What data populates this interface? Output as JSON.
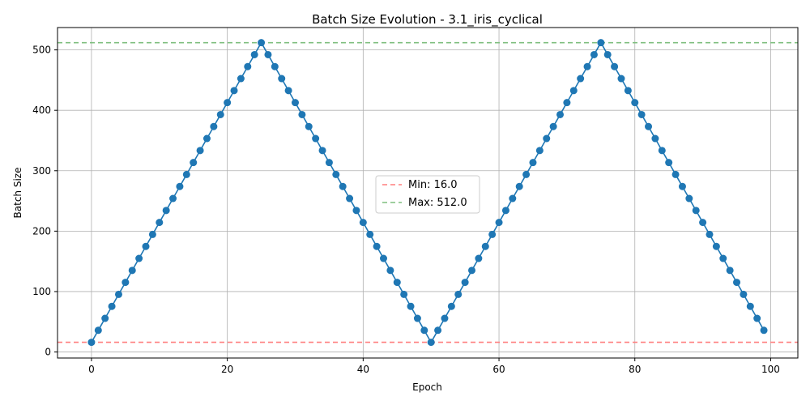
{
  "chart_data": {
    "type": "line",
    "title": "Batch Size Evolution - 3.1_iris_cyclical",
    "xlabel": "Epoch",
    "ylabel": "Batch Size",
    "xlim": [
      -5,
      104
    ],
    "ylim": [
      -10,
      537
    ],
    "xticks": [
      0,
      20,
      40,
      60,
      80,
      100
    ],
    "yticks": [
      0,
      100,
      200,
      300,
      400,
      500
    ],
    "grid": true,
    "legend_position": "center",
    "series": [
      {
        "color": "#1f77b4",
        "marker": "circle",
        "x": [
          0,
          1,
          2,
          3,
          4,
          5,
          6,
          7,
          8,
          9,
          10,
          11,
          12,
          13,
          14,
          15,
          16,
          17,
          18,
          19,
          20,
          21,
          22,
          23,
          24,
          25,
          26,
          27,
          28,
          29,
          30,
          31,
          32,
          33,
          34,
          35,
          36,
          37,
          38,
          39,
          40,
          41,
          42,
          43,
          44,
          45,
          46,
          47,
          48,
          49,
          50,
          51,
          52,
          53,
          54,
          55,
          56,
          57,
          58,
          59,
          60,
          61,
          62,
          63,
          64,
          65,
          66,
          67,
          68,
          69,
          70,
          71,
          72,
          73,
          74,
          75,
          76,
          77,
          78,
          79,
          80,
          81,
          82,
          83,
          84,
          85,
          86,
          87,
          88,
          89,
          90,
          91,
          92,
          93,
          94,
          95,
          96,
          97,
          98,
          99
        ],
        "y": [
          16,
          35.84,
          55.68,
          75.52,
          95.36,
          115.2,
          135.04,
          154.88,
          174.72,
          194.56,
          214.4,
          234.24,
          254.08,
          273.92,
          293.76,
          313.6,
          333.44,
          353.28,
          373.12,
          392.96,
          412.8,
          432.64,
          452.48,
          472.32,
          492.16,
          512,
          492.16,
          472.32,
          452.48,
          432.64,
          412.8,
          392.96,
          373.12,
          353.28,
          333.44,
          313.6,
          293.76,
          273.92,
          254.08,
          234.24,
          214.4,
          194.56,
          174.72,
          154.88,
          135.04,
          115.2,
          95.36,
          75.52,
          55.68,
          35.84,
          16,
          35.84,
          55.68,
          75.52,
          95.36,
          115.2,
          135.04,
          154.88,
          174.72,
          194.56,
          214.4,
          234.24,
          254.08,
          273.92,
          293.76,
          313.6,
          333.44,
          353.28,
          373.12,
          392.96,
          412.8,
          432.64,
          452.48,
          472.32,
          492.16,
          512,
          492.16,
          472.32,
          452.48,
          432.64,
          412.8,
          392.96,
          373.12,
          353.28,
          333.44,
          313.6,
          293.76,
          273.92,
          254.08,
          234.24,
          214.4,
          194.56,
          174.72,
          154.88,
          135.04,
          115.2,
          95.36,
          75.52,
          55.68,
          35.84
        ]
      }
    ],
    "reference_lines": [
      {
        "label": "Min: 16.0",
        "y": 16,
        "color": "#ff7f7f",
        "style": "dashed"
      },
      {
        "label": "Max: 512.0",
        "y": 512,
        "color": "#7fbf7f",
        "style": "dashed"
      }
    ]
  }
}
